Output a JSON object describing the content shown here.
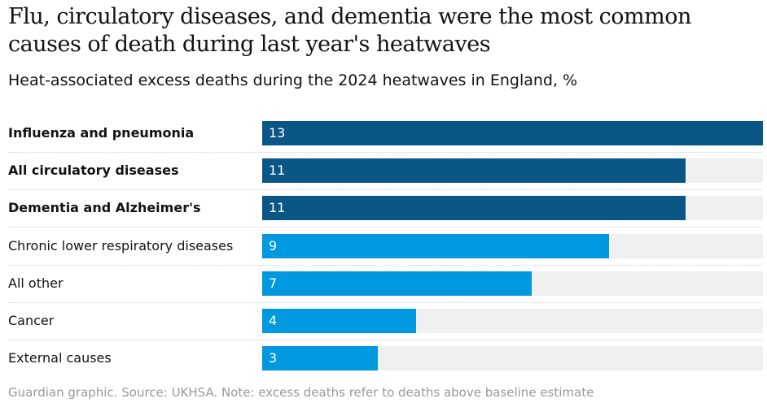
{
  "title": "Flu, circulatory diseases, and dementia were the most common causes of death during last year's heatwaves",
  "subtitle": "Heat-associated excess deaths during the 2024 heatwaves in England, %",
  "footnote": "Guardian graphic. Source: UKHSA. Note: excess deaths refer to deaths above baseline estimate",
  "colors": {
    "highlight": "#0a5685",
    "standard": "#0099e0",
    "track": "#f0f0f0"
  },
  "chart_data": {
    "type": "bar",
    "orientation": "horizontal",
    "title": "Flu, circulatory diseases, and dementia were the most common causes of death during last year's heatwaves",
    "subtitle": "Heat-associated excess deaths during the 2024 heatwaves in England, %",
    "categories": [
      "Influenza and pneumonia",
      "All circulatory diseases",
      "Dementia and Alzheimer's",
      "Chronic lower respiratory diseases",
      "All other",
      "Cancer",
      "External causes"
    ],
    "values": [
      13,
      11,
      11,
      9,
      7,
      4,
      3
    ],
    "highlighted": [
      true,
      true,
      true,
      false,
      false,
      false,
      false
    ],
    "xlim": [
      0,
      13
    ],
    "xlabel": "",
    "ylabel": "",
    "unit": "%"
  }
}
